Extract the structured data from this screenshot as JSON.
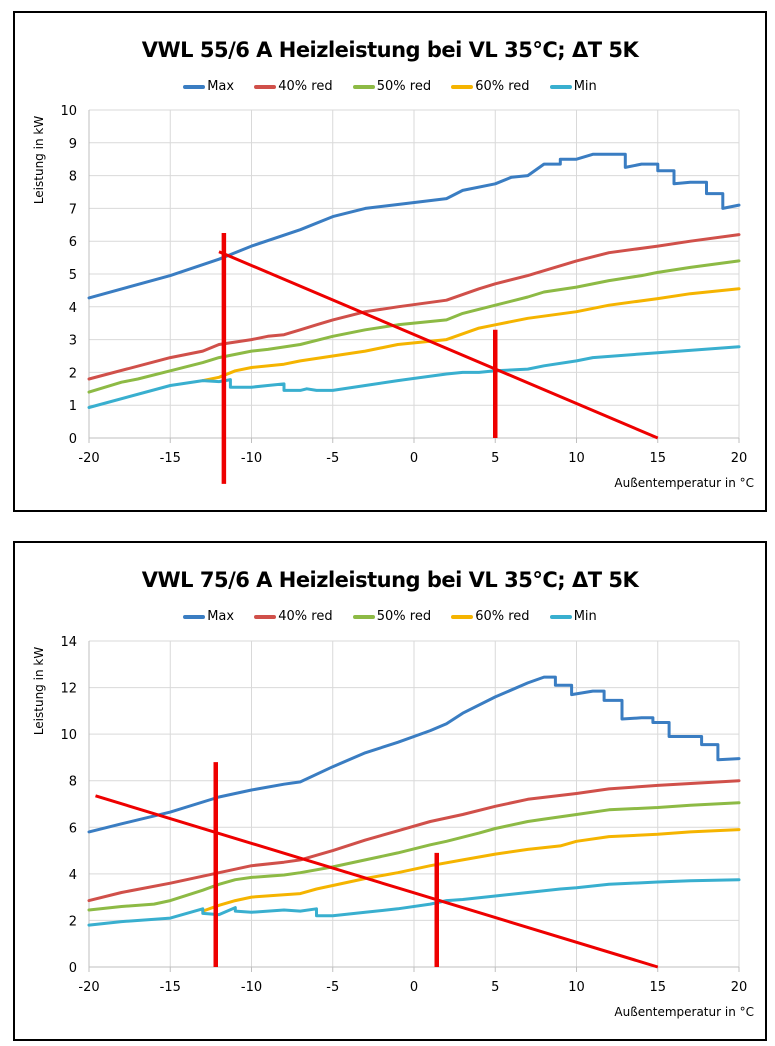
{
  "charts_meta": {
    "colors": {
      "Max": "#3A7DC2",
      "40% red": "#D0504A",
      "50% red": "#8DBA45",
      "60% red": "#F5B400",
      "Min": "#39AFCF",
      "annotation": "#EE0000",
      "grid": "#D9D9D9",
      "axis": "#BFBFBF"
    }
  },
  "chart_data": [
    {
      "type": "line",
      "title": "VWL 55/6 A Heizleistung bei VL 35°C; ΔT 5K",
      "xlabel": "Außentemperatur in °C",
      "ylabel": "Leistung in kW",
      "xlim": [
        -20,
        20
      ],
      "ylim": [
        0,
        10
      ],
      "xticks": [
        -20,
        -15,
        -10,
        -5,
        0,
        5,
        10,
        15,
        20
      ],
      "yticks": [
        0,
        1,
        2,
        3,
        4,
        5,
        6,
        7,
        8,
        9,
        10
      ],
      "grid": true,
      "legend": "top-center",
      "series": [
        {
          "name": "Max",
          "points": [
            [
              -20,
              4.27
            ],
            [
              -15,
              4.95
            ],
            [
              -12,
              5.45
            ],
            [
              -10,
              5.85
            ],
            [
              -7,
              6.35
            ],
            [
              -5,
              6.75
            ],
            [
              -3,
              7.0
            ],
            [
              -1,
              7.12
            ],
            [
              2,
              7.3
            ],
            [
              3,
              7.55
            ],
            [
              5,
              7.75
            ],
            [
              6,
              7.95
            ],
            [
              7,
              8.0
            ],
            [
              8,
              8.35
            ],
            [
              9,
              8.35
            ],
            [
              9,
              8.5
            ],
            [
              10,
              8.5
            ],
            [
              11,
              8.65
            ],
            [
              13,
              8.65
            ],
            [
              13,
              8.25
            ],
            [
              14,
              8.35
            ],
            [
              15,
              8.35
            ],
            [
              15,
              8.15
            ],
            [
              16,
              8.15
            ],
            [
              16,
              7.75
            ],
            [
              17,
              7.8
            ],
            [
              18,
              7.8
            ],
            [
              18,
              7.45
            ],
            [
              19,
              7.45
            ],
            [
              19,
              7.0
            ],
            [
              20,
              7.1
            ]
          ]
        },
        {
          "name": "40% red",
          "points": [
            [
              -20,
              1.8
            ],
            [
              -15,
              2.45
            ],
            [
              -13,
              2.65
            ],
            [
              -12,
              2.85
            ],
            [
              -10,
              3.0
            ],
            [
              -9,
              3.1
            ],
            [
              -8,
              3.15
            ],
            [
              -7,
              3.3
            ],
            [
              -6,
              3.45
            ],
            [
              -5,
              3.6
            ],
            [
              -3,
              3.85
            ],
            [
              -1,
              4.0
            ],
            [
              2,
              4.2
            ],
            [
              4,
              4.55
            ],
            [
              5,
              4.7
            ],
            [
              7,
              4.95
            ],
            [
              10,
              5.4
            ],
            [
              12,
              5.65
            ],
            [
              15,
              5.85
            ],
            [
              17,
              6.0
            ],
            [
              20,
              6.2
            ]
          ]
        },
        {
          "name": "50% red",
          "points": [
            [
              -20,
              1.4
            ],
            [
              -18,
              1.7
            ],
            [
              -17,
              1.8
            ],
            [
              -15,
              2.05
            ],
            [
              -13,
              2.3
            ],
            [
              -12,
              2.45
            ],
            [
              -10,
              2.65
            ],
            [
              -9,
              2.7
            ],
            [
              -7,
              2.85
            ],
            [
              -5,
              3.1
            ],
            [
              -3,
              3.3
            ],
            [
              -1,
              3.45
            ],
            [
              2,
              3.6
            ],
            [
              3,
              3.8
            ],
            [
              5,
              4.05
            ],
            [
              7,
              4.3
            ],
            [
              8,
              4.45
            ],
            [
              10,
              4.6
            ],
            [
              12,
              4.8
            ],
            [
              14,
              4.95
            ],
            [
              15,
              5.05
            ],
            [
              17,
              5.2
            ],
            [
              20,
              5.4
            ]
          ]
        },
        {
          "name": "60% red",
          "points": [
            [
              -13,
              1.75
            ],
            [
              -12,
              1.85
            ],
            [
              -11,
              2.05
            ],
            [
              -10,
              2.15
            ],
            [
              -8,
              2.25
            ],
            [
              -7,
              2.35
            ],
            [
              -5,
              2.5
            ],
            [
              -3,
              2.65
            ],
            [
              -1,
              2.85
            ],
            [
              2,
              3.0
            ],
            [
              4,
              3.35
            ],
            [
              5,
              3.45
            ],
            [
              7,
              3.65
            ],
            [
              10,
              3.85
            ],
            [
              12,
              4.05
            ],
            [
              15,
              4.25
            ],
            [
              17,
              4.4
            ],
            [
              20,
              4.55
            ]
          ]
        },
        {
          "name": "Min",
          "points": [
            [
              -20,
              0.93
            ],
            [
              -15,
              1.6
            ],
            [
              -13,
              1.75
            ],
            [
              -12,
              1.72
            ],
            [
              -11.6,
              1.75
            ],
            [
              -11.3,
              1.78
            ],
            [
              -11.3,
              1.55
            ],
            [
              -10,
              1.55
            ],
            [
              -9,
              1.6
            ],
            [
              -8,
              1.65
            ],
            [
              -8,
              1.45
            ],
            [
              -7,
              1.45
            ],
            [
              -6.6,
              1.5
            ],
            [
              -6,
              1.45
            ],
            [
              -5,
              1.45
            ],
            [
              -3,
              1.6
            ],
            [
              -1,
              1.75
            ],
            [
              2,
              1.95
            ],
            [
              3,
              2.0
            ],
            [
              4,
              2.0
            ],
            [
              5,
              2.05
            ],
            [
              7,
              2.1
            ],
            [
              8,
              2.2
            ],
            [
              10,
              2.35
            ],
            [
              11,
              2.45
            ],
            [
              15,
              2.6
            ],
            [
              20,
              2.78
            ]
          ]
        }
      ],
      "annotations": {
        "diagonal_line": {
          "from": [
            -12,
            5.68
          ],
          "to": [
            15,
            0
          ]
        },
        "vertical_lines": [
          {
            "x": -11.7,
            "y_from": -1.4,
            "y_to": 6.25
          },
          {
            "x": 5,
            "y_from": 0,
            "y_to": 3.3
          }
        ]
      }
    },
    {
      "type": "line",
      "title": "VWL 75/6 A Heizleistung bei VL 35°C; ΔT 5K",
      "xlabel": "Außentemperatur in °C",
      "ylabel": "Leistung in kW",
      "xlim": [
        -20,
        20
      ],
      "ylim": [
        0,
        14
      ],
      "xticks": [
        -20,
        -15,
        -10,
        -5,
        0,
        5,
        10,
        15,
        20
      ],
      "yticks": [
        0,
        2,
        4,
        6,
        8,
        10,
        12,
        14
      ],
      "grid": true,
      "legend": "top-center",
      "series": [
        {
          "name": "Max",
          "points": [
            [
              -20,
              5.8
            ],
            [
              -18,
              6.15
            ],
            [
              -15,
              6.65
            ],
            [
              -12,
              7.3
            ],
            [
              -10,
              7.6
            ],
            [
              -8,
              7.85
            ],
            [
              -7,
              7.95
            ],
            [
              -5,
              8.6
            ],
            [
              -3,
              9.2
            ],
            [
              -1,
              9.65
            ],
            [
              1,
              10.15
            ],
            [
              2,
              10.45
            ],
            [
              3,
              10.9
            ],
            [
              5,
              11.6
            ],
            [
              7,
              12.2
            ],
            [
              8,
              12.45
            ],
            [
              8.7,
              12.45
            ],
            [
              8.7,
              12.1
            ],
            [
              9.7,
              12.1
            ],
            [
              9.7,
              11.7
            ],
            [
              11,
              11.85
            ],
            [
              11.7,
              11.85
            ],
            [
              11.7,
              11.45
            ],
            [
              12.8,
              11.45
            ],
            [
              12.8,
              10.65
            ],
            [
              14,
              10.7
            ],
            [
              14.7,
              10.7
            ],
            [
              14.7,
              10.5
            ],
            [
              15.7,
              10.5
            ],
            [
              15.7,
              9.9
            ],
            [
              17.7,
              9.9
            ],
            [
              17.7,
              9.55
            ],
            [
              18.7,
              9.55
            ],
            [
              18.7,
              8.9
            ],
            [
              20,
              8.95
            ]
          ]
        },
        {
          "name": "40% red",
          "points": [
            [
              -20,
              2.85
            ],
            [
              -18,
              3.2
            ],
            [
              -15,
              3.6
            ],
            [
              -12,
              4.05
            ],
            [
              -10,
              4.35
            ],
            [
              -8,
              4.5
            ],
            [
              -7,
              4.6
            ],
            [
              -5,
              5.0
            ],
            [
              -3,
              5.45
            ],
            [
              -1,
              5.85
            ],
            [
              1,
              6.25
            ],
            [
              3,
              6.55
            ],
            [
              5,
              6.9
            ],
            [
              7,
              7.2
            ],
            [
              10,
              7.45
            ],
            [
              12,
              7.65
            ],
            [
              15,
              7.8
            ],
            [
              20,
              8.0
            ]
          ]
        },
        {
          "name": "50% red",
          "points": [
            [
              -20,
              2.45
            ],
            [
              -18,
              2.6
            ],
            [
              -16,
              2.7
            ],
            [
              -15,
              2.85
            ],
            [
              -13,
              3.3
            ],
            [
              -12,
              3.55
            ],
            [
              -11,
              3.75
            ],
            [
              -10,
              3.85
            ],
            [
              -8,
              3.95
            ],
            [
              -7,
              4.05
            ],
            [
              -5,
              4.3
            ],
            [
              -3,
              4.6
            ],
            [
              -1,
              4.9
            ],
            [
              1,
              5.25
            ],
            [
              2,
              5.4
            ],
            [
              4,
              5.75
            ],
            [
              5,
              5.95
            ],
            [
              7,
              6.25
            ],
            [
              8,
              6.35
            ],
            [
              10,
              6.55
            ],
            [
              12,
              6.75
            ],
            [
              15,
              6.85
            ],
            [
              17,
              6.95
            ],
            [
              20,
              7.05
            ]
          ]
        },
        {
          "name": "60% red",
          "points": [
            [
              -13,
              2.4
            ],
            [
              -12,
              2.65
            ],
            [
              -11,
              2.85
            ],
            [
              -10,
              3.0
            ],
            [
              -8,
              3.1
            ],
            [
              -7,
              3.15
            ],
            [
              -6,
              3.35
            ],
            [
              -5,
              3.5
            ],
            [
              -3,
              3.8
            ],
            [
              -1,
              4.05
            ],
            [
              1,
              4.35
            ],
            [
              3,
              4.6
            ],
            [
              5,
              4.85
            ],
            [
              7,
              5.05
            ],
            [
              9,
              5.2
            ],
            [
              10,
              5.4
            ],
            [
              12,
              5.6
            ],
            [
              15,
              5.7
            ],
            [
              17,
              5.8
            ],
            [
              20,
              5.9
            ]
          ]
        },
        {
          "name": "Min",
          "points": [
            [
              -20,
              1.8
            ],
            [
              -18,
              1.95
            ],
            [
              -15,
              2.1
            ],
            [
              -13,
              2.5
            ],
            [
              -13,
              2.3
            ],
            [
              -12,
              2.25
            ],
            [
              -11,
              2.55
            ],
            [
              -11,
              2.4
            ],
            [
              -10,
              2.35
            ],
            [
              -8,
              2.45
            ],
            [
              -7,
              2.4
            ],
            [
              -6,
              2.5
            ],
            [
              -6,
              2.2
            ],
            [
              -5,
              2.2
            ],
            [
              -3,
              2.35
            ],
            [
              -1,
              2.5
            ],
            [
              1,
              2.7
            ],
            [
              2,
              2.85
            ],
            [
              3,
              2.9
            ],
            [
              5,
              3.05
            ],
            [
              7,
              3.2
            ],
            [
              9,
              3.35
            ],
            [
              10,
              3.4
            ],
            [
              12,
              3.55
            ],
            [
              15,
              3.65
            ],
            [
              17,
              3.7
            ],
            [
              20,
              3.75
            ]
          ]
        }
      ],
      "annotations": {
        "diagonal_line": {
          "from": [
            -19.6,
            7.35
          ],
          "to": [
            15,
            0
          ]
        },
        "vertical_lines": [
          {
            "x": -12.2,
            "y_from": 0,
            "y_to": 8.8
          },
          {
            "x": 1.4,
            "y_from": 0,
            "y_to": 4.9
          }
        ]
      }
    }
  ]
}
